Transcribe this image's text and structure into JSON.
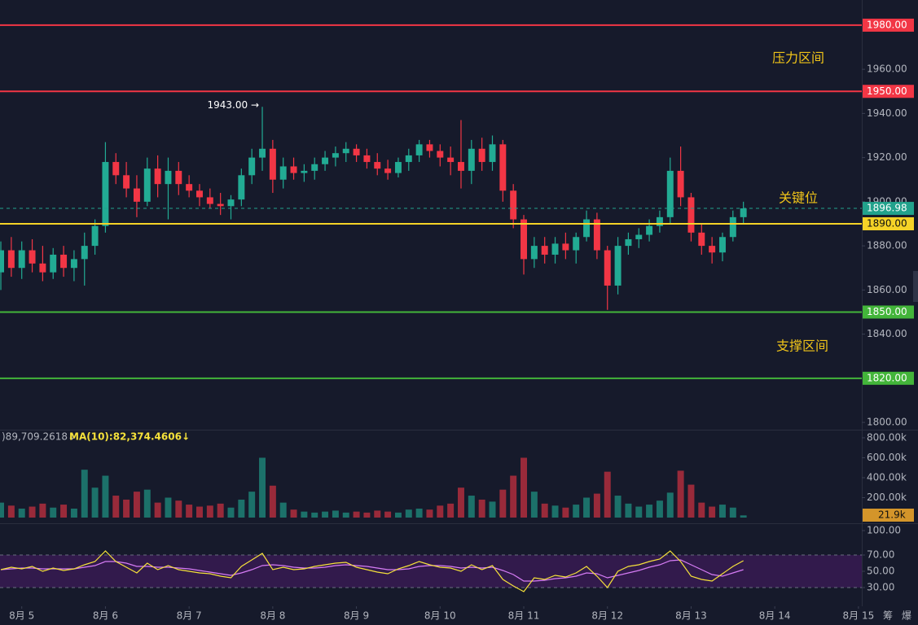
{
  "chart_data": {
    "type": "candlestick",
    "up_color": "#22ab94",
    "down_color": "#f23645",
    "x": [
      4.75,
      4.875,
      5,
      5.125,
      5.25,
      5.375,
      5.5,
      5.625,
      5.75,
      5.875,
      6,
      6.125,
      6.25,
      6.375,
      6.5,
      6.625,
      6.75,
      6.875,
      7,
      7.125,
      7.25,
      7.375,
      7.5,
      7.625,
      7.75,
      7.875,
      8,
      8.125,
      8.25,
      8.375,
      8.5,
      8.625,
      8.75,
      8.875,
      9,
      9.125,
      9.25,
      9.375,
      9.5,
      9.625,
      9.75,
      9.875,
      10,
      10.125,
      10.25,
      10.375,
      10.5,
      10.625,
      10.75,
      10.875,
      11,
      11.125,
      11.25,
      11.375,
      11.5,
      11.625,
      11.75,
      11.875,
      12,
      12.125,
      12.25,
      12.375,
      12.5,
      12.625,
      12.75,
      12.875,
      13,
      13.125,
      13.25,
      13.375,
      13.5,
      13.625
    ],
    "open": [
      1868,
      1878,
      1870,
      1878,
      1872,
      1868,
      1876,
      1870,
      1874,
      1880,
      1889,
      1918,
      1912,
      1906,
      1900,
      1915,
      1908,
      1914,
      1908,
      1905,
      1902,
      1899,
      1898,
      1901,
      1912,
      1920,
      1924,
      1910,
      1916,
      1913,
      1914,
      1917,
      1920,
      1922,
      1924,
      1921,
      1918,
      1915,
      1913,
      1918,
      1921,
      1926,
      1923,
      1920,
      1918,
      1914,
      1924,
      1918,
      1926,
      1905,
      1892,
      1874,
      1880,
      1876,
      1881,
      1878,
      1884,
      1892,
      1878,
      1862,
      1880,
      1883,
      1885,
      1889,
      1893,
      1914,
      1902,
      1886,
      1880,
      1877,
      1884,
      1893
    ],
    "high": [
      1882,
      1884,
      1882,
      1883,
      1880,
      1879,
      1880,
      1878,
      1886,
      1892,
      1927,
      1922,
      1918,
      1912,
      1920,
      1921,
      1920,
      1918,
      1912,
      1908,
      1906,
      1904,
      1903,
      1915,
      1924,
      1943,
      1928,
      1920,
      1920,
      1917,
      1920,
      1923,
      1925,
      1927,
      1926,
      1924,
      1922,
      1919,
      1920,
      1924,
      1928,
      1928,
      1926,
      1925,
      1937,
      1928,
      1929,
      1930,
      1928,
      1908,
      1894,
      1884,
      1884,
      1884,
      1886,
      1886,
      1896,
      1895,
      1880,
      1884,
      1886,
      1888,
      1892,
      1896,
      1920,
      1925,
      1904,
      1890,
      1884,
      1886,
      1896,
      1900
    ],
    "low": [
      1860,
      1866,
      1865,
      1868,
      1864,
      1865,
      1866,
      1864,
      1862,
      1876,
      1886,
      1908,
      1902,
      1893,
      1898,
      1902,
      1892,
      1903,
      1902,
      1898,
      1897,
      1894,
      1892,
      1898,
      1908,
      1914,
      1904,
      1906,
      1910,
      1909,
      1910,
      1914,
      1916,
      1918,
      1918,
      1915,
      1912,
      1910,
      1911,
      1914,
      1918,
      1920,
      1916,
      1912,
      1906,
      1908,
      1914,
      1914,
      1900,
      1888,
      1867,
      1870,
      1872,
      1872,
      1874,
      1872,
      1882,
      1874,
      1851,
      1858,
      1876,
      1879,
      1882,
      1886,
      1890,
      1898,
      1882,
      1876,
      1872,
      1873,
      1882,
      1890
    ],
    "close": [
      1878,
      1870,
      1878,
      1872,
      1868,
      1876,
      1870,
      1874,
      1880,
      1889,
      1918,
      1912,
      1906,
      1900,
      1915,
      1908,
      1914,
      1908,
      1905,
      1902,
      1899,
      1898,
      1901,
      1912,
      1920,
      1924,
      1910,
      1916,
      1913,
      1914,
      1917,
      1920,
      1922,
      1924,
      1921,
      1918,
      1915,
      1913,
      1918,
      1921,
      1926,
      1923,
      1920,
      1918,
      1914,
      1924,
      1918,
      1926,
      1905,
      1892,
      1874,
      1880,
      1876,
      1881,
      1878,
      1884,
      1892,
      1878,
      1862,
      1880,
      1883,
      1885,
      1889,
      1893,
      1914,
      1902,
      1886,
      1880,
      1877,
      1884,
      1893,
      1896.98
    ],
    "xlim": [
      4.74,
      15.04
    ],
    "xticks": [
      {
        "value": 5,
        "label": "8月 5"
      },
      {
        "value": 6,
        "label": "8月 6"
      },
      {
        "value": 7,
        "label": "8月 7"
      },
      {
        "value": 8,
        "label": "8月 8"
      },
      {
        "value": 9,
        "label": "8月 9"
      },
      {
        "value": 10,
        "label": "8月 10"
      },
      {
        "value": 11,
        "label": "8月 11"
      },
      {
        "value": 12,
        "label": "8月 12"
      },
      {
        "value": 13,
        "label": "8月 13"
      },
      {
        "value": 14,
        "label": "8月 14"
      },
      {
        "value": 15,
        "label": "8月 15"
      }
    ],
    "ylim": [
      1796.7,
      1991.4
    ],
    "yticks": [
      {
        "value": 1800,
        "label": "1800.00"
      },
      {
        "value": 1840,
        "label": "1840.00"
      },
      {
        "value": 1860,
        "label": "1860.00"
      },
      {
        "value": 1880,
        "label": "1880.00"
      },
      {
        "value": 1900,
        "label": "1900.00"
      },
      {
        "value": 1920,
        "label": "1920.00"
      },
      {
        "value": 1940,
        "label": "1940.00"
      },
      {
        "value": 1960,
        "label": "1960.00"
      }
    ],
    "levels": [
      {
        "value": 1980,
        "label": "1980.00",
        "color": "#f23645"
      },
      {
        "value": 1950,
        "label": "1950.00",
        "color": "#f23645"
      },
      {
        "value": 1890,
        "label": "1890.00",
        "color": "#f5d327"
      },
      {
        "value": 1850,
        "label": "1850.00",
        "color": "#43b53a"
      },
      {
        "value": 1820,
        "label": "1820.00",
        "color": "#43b53a"
      }
    ],
    "zone_labels": [
      "压力区间",
      "关键位",
      "支撑区间"
    ],
    "high_label": "1943.00 →",
    "last_color": "#22a28c",
    "volume": {
      "values": [
        150000,
        120000,
        90000,
        110000,
        140000,
        100000,
        130000,
        90000,
        480000,
        300000,
        420000,
        220000,
        180000,
        260000,
        280000,
        150000,
        200000,
        170000,
        130000,
        110000,
        120000,
        140000,
        100000,
        180000,
        260000,
        600000,
        320000,
        150000,
        80000,
        60000,
        50000,
        60000,
        70000,
        50000,
        60000,
        50000,
        70000,
        60000,
        50000,
        80000,
        90000,
        80000,
        120000,
        140000,
        300000,
        220000,
        180000,
        160000,
        280000,
        420000,
        600000,
        260000,
        140000,
        120000,
        100000,
        130000,
        200000,
        240000,
        460000,
        220000,
        140000,
        110000,
        130000,
        170000,
        250000,
        470000,
        330000,
        150000,
        110000,
        130000,
        100000,
        21900
      ],
      "last_label": "21.9k",
      "header": [
        ")89,709.2618↓",
        "MA(10):82,374.4606↓"
      ],
      "ylim": [
        0,
        865000
      ],
      "yticks": [
        {
          "value": 200000,
          "label": "200.00k"
        },
        {
          "value": 400000,
          "label": "400.00k"
        },
        {
          "value": 600000,
          "label": "600.00k"
        },
        {
          "value": 800000,
          "label": "800.00k"
        }
      ]
    },
    "rsi": {
      "ylim": [
        5,
        105
      ],
      "band": [
        30,
        70
      ],
      "yticks": [
        {
          "value": 30,
          "label": "30.00"
        },
        {
          "value": 50,
          "label": "50.00"
        },
        {
          "value": 70,
          "label": "70.00"
        },
        {
          "value": 100,
          "label": "100.00"
        }
      ],
      "series": [
        {
          "color": "#d67cf5",
          "values": [
            52,
            53,
            54,
            54,
            53,
            53,
            53,
            53,
            55,
            57,
            62,
            62,
            60,
            56,
            56,
            55,
            55,
            54,
            53,
            51,
            49,
            47,
            45,
            48,
            52,
            57,
            58,
            57,
            55,
            54,
            54,
            55,
            57,
            58,
            57,
            56,
            54,
            52,
            52,
            53,
            56,
            57,
            57,
            56,
            54,
            55,
            54,
            55,
            51,
            46,
            38,
            38,
            39,
            41,
            42,
            44,
            48,
            47,
            42,
            45,
            48,
            51,
            55,
            58,
            63,
            64,
            58,
            52,
            46,
            44,
            48,
            52
          ]
        },
        {
          "color": "#f5e13a",
          "values": [
            52,
            55,
            53,
            56,
            50,
            54,
            51,
            53,
            58,
            62,
            75,
            62,
            55,
            48,
            60,
            52,
            57,
            52,
            50,
            48,
            47,
            44,
            42,
            56,
            64,
            72,
            52,
            55,
            52,
            53,
            56,
            58,
            60,
            61,
            55,
            52,
            49,
            47,
            53,
            57,
            62,
            58,
            55,
            54,
            50,
            58,
            52,
            57,
            40,
            32,
            25,
            42,
            40,
            45,
            43,
            48,
            56,
            44,
            30,
            50,
            56,
            58,
            62,
            65,
            75,
            62,
            44,
            40,
            38,
            47,
            56,
            63
          ]
        }
      ]
    }
  },
  "toolbar_labels": [
    "筹",
    "爆"
  ]
}
